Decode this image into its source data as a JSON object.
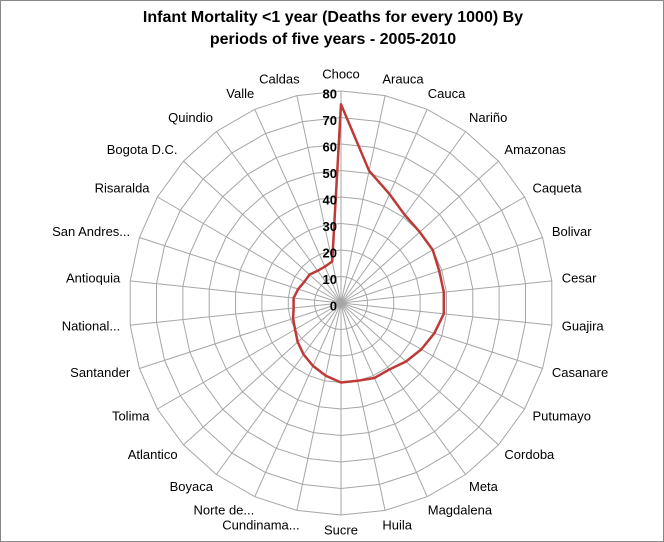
{
  "chart_data": {
    "type": "radar",
    "title": "Infant Mortality <1 year (Deaths for every 1000) By periods of five years - 2005-2010",
    "categories": [
      "Choco",
      "Arauca",
      "Cauca",
      "Nariño",
      "Amazonas",
      "Caqueta",
      "Bolivar",
      "Cesar",
      "Guajira",
      "Casanare",
      "Putumayo",
      "Cordoba",
      "Meta",
      "Magdalena",
      "Huila",
      "Sucre",
      "Cundinama...",
      "Norte de...",
      "Boyaca",
      "Atlantico",
      "Tolima",
      "Santander",
      "National...",
      "Antioquia",
      "San Andres...",
      "Risaralda",
      "Bogota D.C.",
      "Quindio",
      "Valle",
      "Caldas"
    ],
    "series": [
      {
        "name": "Infant Mortality",
        "color": "#be3a37",
        "values": [
          75,
          51,
          45,
          41,
          40,
          40,
          39,
          39,
          39,
          37,
          35,
          33,
          31,
          31,
          30,
          30,
          28,
          26,
          24,
          22,
          20,
          19,
          18,
          18,
          17,
          16,
          16,
          15,
          15,
          16
        ]
      }
    ],
    "ylim": [
      0,
      80
    ],
    "yticks": [
      0,
      10,
      20,
      30,
      40,
      50,
      60,
      70,
      80
    ],
    "grid": true
  }
}
